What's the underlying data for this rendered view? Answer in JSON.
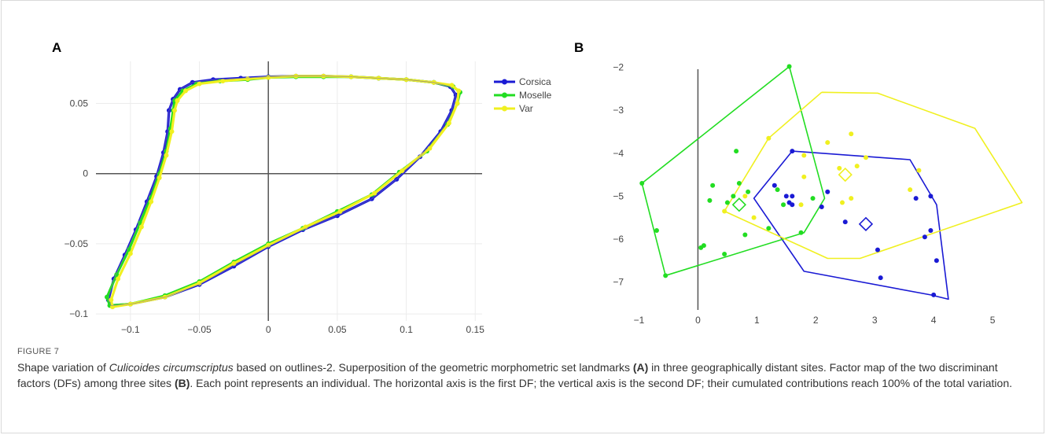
{
  "figure": {
    "label": "FIGURE 7",
    "caption": {
      "prefix": "Shape variation of ",
      "species": "Culicoides circumscriptus",
      "part1": " based on outlines-2. Superposition of the geometric morphometric set landmarks ",
      "refA": "(A)",
      "part2": " in three geographically distant sites. Factor map of the two discriminant factors (DFs) among three sites ",
      "refB": "(B)",
      "part3": ". Each point represents an individual. The horizontal axis is the first DF; the vertical axis is the second DF; their cumulated contributions reach 100% of the total variation."
    }
  },
  "colors": {
    "Corsica": "#1a1ad4",
    "Moselle": "#22dd22",
    "Var": "#f0f020",
    "axis": "#555555",
    "grid": "#ececec"
  },
  "chart_data": [
    {
      "panel": "A",
      "type": "line",
      "xlim": [
        -0.125,
        0.155
      ],
      "ylim": [
        -0.105,
        0.08
      ],
      "xticks": [
        -0.1,
        -0.05,
        0,
        0.05,
        0.1,
        0.15
      ],
      "xtick_labels": [
        "−0.1",
        "−0.05",
        "0",
        "0.05",
        "0.1",
        "0.15"
      ],
      "yticks": [
        -0.1,
        -0.05,
        0,
        0.05
      ],
      "ytick_labels": [
        "−0.1",
        "−0.05",
        "0",
        "0.05"
      ],
      "grid": true,
      "legend_position": "top-right",
      "series": [
        {
          "name": "Corsica",
          "points": [
            [
              -0.069,
              0.053
            ],
            [
              -0.064,
              0.06
            ],
            [
              -0.055,
              0.065
            ],
            [
              -0.04,
              0.067
            ],
            [
              -0.02,
              0.068
            ],
            [
              0,
              0.069
            ],
            [
              0.02,
              0.0695
            ],
            [
              0.04,
              0.0695
            ],
            [
              0.06,
              0.069
            ],
            [
              0.08,
              0.068
            ],
            [
              0.1,
              0.067
            ],
            [
              0.12,
              0.065
            ],
            [
              0.132,
              0.062
            ],
            [
              0.136,
              0.056
            ],
            [
              0.133,
              0.045
            ],
            [
              0.125,
              0.03
            ],
            [
              0.11,
              0.012
            ],
            [
              0.093,
              -0.004
            ],
            [
              0.075,
              -0.018
            ],
            [
              0.05,
              -0.03
            ],
            [
              0.025,
              -0.04
            ],
            [
              0,
              -0.052
            ],
            [
              -0.025,
              -0.066
            ],
            [
              -0.05,
              -0.079
            ],
            [
              -0.075,
              -0.088
            ],
            [
              -0.1,
              -0.093
            ],
            [
              -0.114,
              -0.094
            ],
            [
              -0.116,
              -0.09
            ],
            [
              -0.112,
              -0.075
            ],
            [
              -0.104,
              -0.058
            ],
            [
              -0.096,
              -0.04
            ],
            [
              -0.088,
              -0.02
            ],
            [
              -0.081,
              -0.002
            ],
            [
              -0.076,
              0.015
            ],
            [
              -0.073,
              0.03
            ],
            [
              -0.072,
              0.045
            ],
            [
              -0.069,
              0.053
            ]
          ]
        },
        {
          "name": "Moselle",
          "points": [
            [
              -0.068,
              0.052
            ],
            [
              -0.062,
              0.059
            ],
            [
              -0.052,
              0.064
            ],
            [
              -0.035,
              0.066
            ],
            [
              -0.015,
              0.067
            ],
            [
              0,
              0.0685
            ],
            [
              0.02,
              0.069
            ],
            [
              0.04,
              0.069
            ],
            [
              0.06,
              0.069
            ],
            [
              0.08,
              0.068
            ],
            [
              0.1,
              0.067
            ],
            [
              0.12,
              0.065
            ],
            [
              0.134,
              0.062
            ],
            [
              0.139,
              0.058
            ],
            [
              0.137,
              0.05
            ],
            [
              0.13,
              0.035
            ],
            [
              0.115,
              0.016
            ],
            [
              0.095,
              0.001
            ],
            [
              0.075,
              -0.015
            ],
            [
              0.05,
              -0.027
            ],
            [
              0.025,
              -0.039
            ],
            [
              0,
              -0.05
            ],
            [
              -0.025,
              -0.063
            ],
            [
              -0.05,
              -0.077
            ],
            [
              -0.075,
              -0.087
            ],
            [
              -0.1,
              -0.093
            ],
            [
              -0.115,
              -0.094
            ],
            [
              -0.117,
              -0.088
            ],
            [
              -0.11,
              -0.072
            ],
            [
              -0.101,
              -0.054
            ],
            [
              -0.093,
              -0.035
            ],
            [
              -0.085,
              -0.017
            ],
            [
              -0.079,
              0.0
            ],
            [
              -0.074,
              0.016
            ],
            [
              -0.071,
              0.032
            ],
            [
              -0.069,
              0.045
            ],
            [
              -0.068,
              0.052
            ]
          ]
        },
        {
          "name": "Var",
          "points": [
            [
              -0.066,
              0.052
            ],
            [
              -0.06,
              0.059
            ],
            [
              -0.05,
              0.064
            ],
            [
              -0.033,
              0.066
            ],
            [
              -0.015,
              0.0675
            ],
            [
              0,
              0.0685
            ],
            [
              0.02,
              0.0695
            ],
            [
              0.04,
              0.0695
            ],
            [
              0.06,
              0.069
            ],
            [
              0.08,
              0.068
            ],
            [
              0.1,
              0.067
            ],
            [
              0.12,
              0.065
            ],
            [
              0.133,
              0.063
            ],
            [
              0.138,
              0.059
            ],
            [
              0.137,
              0.05
            ],
            [
              0.131,
              0.036
            ],
            [
              0.117,
              0.018
            ],
            [
              0.097,
              0.002
            ],
            [
              0.077,
              -0.014
            ],
            [
              0.052,
              -0.027
            ],
            [
              0.027,
              -0.038
            ],
            [
              0,
              -0.051
            ],
            [
              -0.025,
              -0.064
            ],
            [
              -0.05,
              -0.078
            ],
            [
              -0.075,
              -0.088
            ],
            [
              -0.1,
              -0.093
            ],
            [
              -0.113,
              -0.095
            ],
            [
              -0.114,
              -0.09
            ],
            [
              -0.109,
              -0.075
            ],
            [
              -0.1,
              -0.057
            ],
            [
              -0.092,
              -0.038
            ],
            [
              -0.085,
              -0.02
            ],
            [
              -0.079,
              -0.003
            ],
            [
              -0.074,
              0.013
            ],
            [
              -0.07,
              0.03
            ],
            [
              -0.068,
              0.045
            ],
            [
              -0.066,
              0.052
            ]
          ]
        }
      ]
    },
    {
      "panel": "B",
      "type": "scatter",
      "xlim": [
        -1.1,
        5.6
      ],
      "ylim": [
        -7.65,
        -1.75
      ],
      "xticks": [
        -1,
        0,
        1,
        2,
        3,
        4,
        5
      ],
      "xtick_labels": [
        "−1",
        "0",
        "1",
        "2",
        "3",
        "4",
        "5"
      ],
      "yticks": [
        -7,
        -6,
        -5,
        -4,
        -3,
        -2
      ],
      "ytick_labels": [
        "−7",
        "−6",
        "−5",
        "−4",
        "−3",
        "−2"
      ],
      "grid": false,
      "series": [
        {
          "name": "Corsica",
          "points": [
            [
              1.6,
              -3.95
            ],
            [
              1.5,
              -5.0
            ],
            [
              1.6,
              -5.2
            ],
            [
              1.3,
              -4.75
            ],
            [
              2.1,
              -5.25
            ],
            [
              2.2,
              -4.9
            ],
            [
              2.5,
              -5.6
            ],
            [
              3.05,
              -6.25
            ],
            [
              3.1,
              -6.9
            ],
            [
              3.7,
              -5.05
            ],
            [
              3.85,
              -5.95
            ],
            [
              3.95,
              -5.0
            ],
            [
              3.95,
              -5.8
            ],
            [
              4.05,
              -6.5
            ],
            [
              1.6,
              -5.0
            ],
            [
              1.55,
              -5.15
            ],
            [
              4.0,
              -7.3
            ]
          ],
          "hull": [
            [
              1.6,
              -3.95
            ],
            [
              3.6,
              -4.15
            ],
            [
              4.05,
              -5.2
            ],
            [
              4.25,
              -7.4
            ],
            [
              3.95,
              -7.3
            ],
            [
              1.8,
              -6.75
            ],
            [
              0.95,
              -5.05
            ],
            [
              1.6,
              -3.95
            ]
          ],
          "centroid": [
            2.85,
            -5.65
          ]
        },
        {
          "name": "Moselle",
          "points": [
            [
              0.65,
              -3.95
            ],
            [
              0.2,
              -5.1
            ],
            [
              0.25,
              -4.75
            ],
            [
              0.5,
              -5.15
            ],
            [
              0.6,
              -5.0
            ],
            [
              0.7,
              -4.7
            ],
            [
              0.85,
              -4.9
            ],
            [
              0.8,
              -5.9
            ],
            [
              0.1,
              -6.15
            ],
            [
              0.05,
              -6.2
            ],
            [
              0.45,
              -6.35
            ],
            [
              1.2,
              -5.75
            ],
            [
              1.35,
              -4.85
            ],
            [
              1.45,
              -5.2
            ],
            [
              1.95,
              -5.05
            ],
            [
              1.75,
              -5.85
            ],
            [
              -0.7,
              -5.8
            ],
            [
              -0.55,
              -6.85
            ],
            [
              -0.95,
              -4.7
            ],
            [
              1.55,
              -1.98
            ]
          ],
          "hull": [
            [
              1.55,
              -1.98
            ],
            [
              2.15,
              -5.05
            ],
            [
              1.8,
              -5.85
            ],
            [
              -0.55,
              -6.85
            ],
            [
              -0.95,
              -4.7
            ],
            [
              1.55,
              -1.98
            ]
          ],
          "centroid": [
            0.7,
            -5.2
          ]
        },
        {
          "name": "Var",
          "points": [
            [
              1.8,
              -4.05
            ],
            [
              2.2,
              -3.75
            ],
            [
              2.6,
              -3.55
            ],
            [
              1.8,
              -4.55
            ],
            [
              2.4,
              -4.35
            ],
            [
              2.7,
              -4.3
            ],
            [
              2.85,
              -4.1
            ],
            [
              2.45,
              -5.15
            ],
            [
              2.6,
              -5.05
            ],
            [
              3.6,
              -4.85
            ],
            [
              3.75,
              -4.4
            ],
            [
              0.95,
              -5.5
            ],
            [
              1.75,
              -5.2
            ],
            [
              0.45,
              -5.35
            ],
            [
              0.8,
              -5.0
            ],
            [
              1.2,
              -3.65
            ]
          ],
          "hull": [
            [
              2.1,
              -2.58
            ],
            [
              3.05,
              -2.6
            ],
            [
              4.7,
              -3.42
            ],
            [
              5.5,
              -5.15
            ],
            [
              2.75,
              -6.45
            ],
            [
              2.2,
              -6.45
            ],
            [
              0.45,
              -5.35
            ],
            [
              1.2,
              -3.65
            ],
            [
              2.1,
              -2.58
            ]
          ],
          "centroid": [
            2.5,
            -4.5
          ]
        }
      ]
    }
  ]
}
